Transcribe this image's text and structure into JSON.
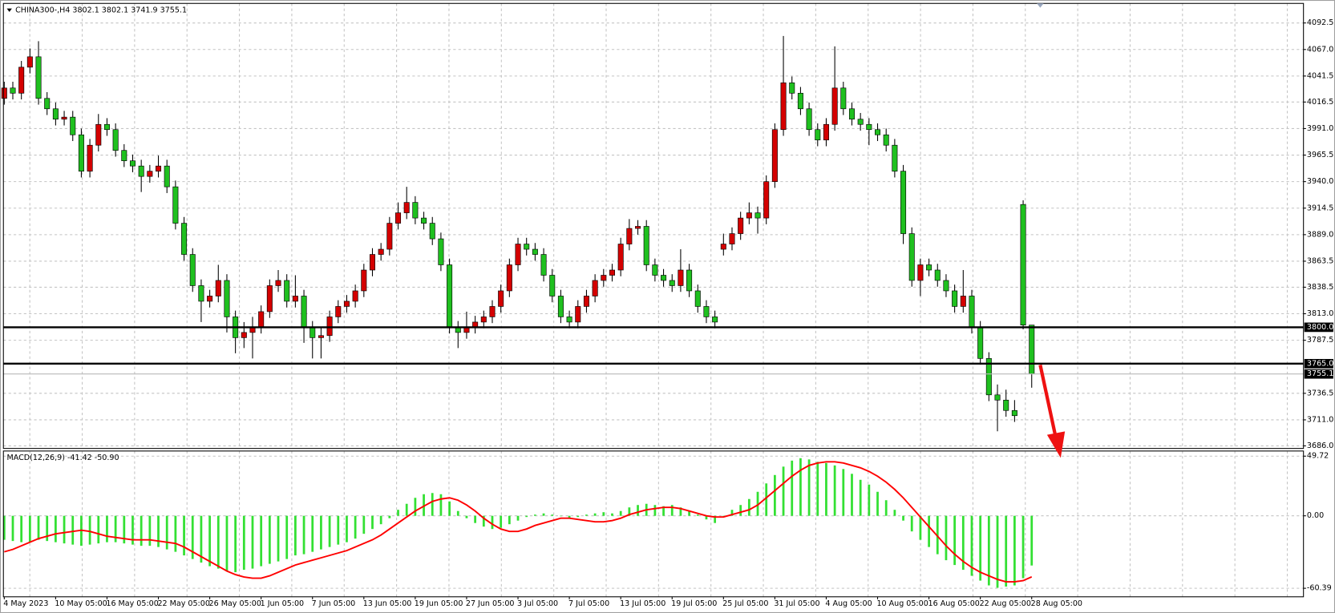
{
  "chart_data": [
    {
      "type": "candlestick",
      "title": "CHINA300-,H4  3802.1 3802.1 3741.9 3755.1",
      "up_color": "#d40000",
      "down_color": "#1fc01f",
      "wick_color": "#000000",
      "ylim": [
        3683.5,
        4111.3
      ],
      "yticks": [
        {
          "value": 4092.5,
          "label": "4092.5"
        },
        {
          "value": 4067,
          "label": "4067.0"
        },
        {
          "value": 4041.5,
          "label": "4041.5"
        },
        {
          "value": 4016.5,
          "label": "4016.5"
        },
        {
          "value": 3991,
          "label": "3991.0"
        },
        {
          "value": 3965.5,
          "label": "3965.5"
        },
        {
          "value": 3940,
          "label": "3940.0"
        },
        {
          "value": 3914.5,
          "label": "3914.5"
        },
        {
          "value": 3889,
          "label": "3889.0"
        },
        {
          "value": 3863.5,
          "label": "3863.5"
        },
        {
          "value": 3838.5,
          "label": "3838.5"
        },
        {
          "value": 3813,
          "label": "3813.0"
        },
        {
          "value": 3787.5,
          "label": "3787.5"
        },
        {
          "value": 3736.5,
          "label": "3736.5"
        },
        {
          "value": 3711,
          "label": "3711.0"
        },
        {
          "value": 3686,
          "label": "3686.0"
        }
      ],
      "grid": true,
      "levels": [
        {
          "value": 3800,
          "label": "3800.0"
        },
        {
          "value": 3765,
          "label": "3765.0"
        }
      ],
      "last_price": 3755.1,
      "categories": [
        "4 May 2023",
        null,
        null,
        null,
        null,
        null,
        "10 May 05:00",
        null,
        null,
        null,
        null,
        null,
        "16 May 05:00",
        null,
        null,
        null,
        null,
        null,
        "22 May 05:00",
        null,
        null,
        null,
        null,
        null,
        "26 May 05:00",
        null,
        null,
        null,
        null,
        null,
        "1 Jun 05:00",
        null,
        null,
        null,
        null,
        null,
        "7 Jun 05:00",
        null,
        null,
        null,
        null,
        null,
        "13 Jun 05:00",
        null,
        null,
        null,
        null,
        null,
        "19 Jun 05:00",
        null,
        null,
        null,
        null,
        null,
        "27 Jun 05:00",
        null,
        null,
        null,
        null,
        null,
        "3 Jul 05:00",
        null,
        null,
        null,
        null,
        null,
        "7 Jul 05:00",
        null,
        null,
        null,
        null,
        null,
        "13 Jul 05:00",
        null,
        null,
        null,
        null,
        null,
        "19 Jul 05:00",
        null,
        null,
        null,
        null,
        null,
        "25 Jul 05:00",
        null,
        null,
        null,
        null,
        null,
        "31 Jul 05:00",
        null,
        null,
        null,
        null,
        null,
        "4 Aug 05:00",
        null,
        null,
        null,
        null,
        null,
        "10 Aug 05:00",
        null,
        null,
        null,
        null,
        null,
        "16 Aug 05:00",
        null,
        null,
        null,
        null,
        null,
        "22 Aug 05:00",
        null,
        null,
        null,
        null,
        null,
        "28 Aug 05:00"
      ],
      "open": [
        4020,
        4030,
        4025,
        4050,
        4060,
        4020,
        4010,
        4000,
        4002,
        3985,
        3950,
        3975,
        3995,
        3990,
        3970,
        3960,
        3955,
        3945,
        3950,
        3955,
        3935,
        3900,
        3870,
        3840,
        3825,
        3830,
        3845,
        3810,
        3790,
        3795,
        3800,
        3815,
        3840,
        3845,
        3825,
        3830,
        3800,
        3790,
        3792,
        3810,
        3820,
        3825,
        3835,
        3855,
        3870,
        3875,
        3900,
        3910,
        3920,
        3905,
        3900,
        3885,
        3860,
        3800,
        3795,
        3800,
        3805,
        3810,
        3820,
        3835,
        3860,
        3880,
        3875,
        3870,
        3850,
        3830,
        3810,
        3805,
        3820,
        3830,
        3845,
        3850,
        3855,
        3880,
        3895,
        3897,
        3860,
        3850,
        3845,
        3840,
        3855,
        3835,
        3820,
        3810,
        3875,
        3880,
        3890,
        3905,
        3910,
        3905,
        3940,
        3990,
        4035,
        4025,
        4010,
        3990,
        3980,
        3995,
        4030,
        4010,
        4000,
        3995,
        3990,
        3985,
        3975,
        3950,
        3890,
        3845,
        3860,
        3855,
        3845,
        3835,
        3820,
        3830,
        3800,
        3770,
        3735,
        3730,
        3720,
        3918,
        3802.1
      ],
      "high": [
        4036,
        4036,
        4056,
        4068,
        4075,
        4026,
        4016,
        4008,
        4008,
        3991,
        3981,
        4005,
        4001,
        3996,
        3976,
        3966,
        3961,
        3956,
        3965,
        3961,
        3941,
        3906,
        3876,
        3846,
        3836,
        3860,
        3851,
        3816,
        3805,
        3810,
        3821,
        3846,
        3855,
        3851,
        3850,
        3836,
        3806,
        3800,
        3816,
        3826,
        3831,
        3841,
        3861,
        3876,
        3881,
        3906,
        3920,
        3935,
        3926,
        3911,
        3906,
        3891,
        3866,
        3806,
        3815,
        3811,
        3816,
        3826,
        3841,
        3866,
        3886,
        3886,
        3881,
        3876,
        3856,
        3836,
        3816,
        3826,
        3836,
        3851,
        3856,
        3861,
        3886,
        3904,
        3903,
        3903,
        3866,
        3856,
        3851,
        3875,
        3861,
        3841,
        3826,
        3816,
        3890,
        3896,
        3911,
        3920,
        3916,
        3946,
        3996,
        4080,
        4041,
        4031,
        4016,
        3996,
        4001,
        4070,
        4036,
        4016,
        4006,
        4001,
        3996,
        3991,
        3981,
        3956,
        3896,
        3866,
        3866,
        3861,
        3851,
        3841,
        3855,
        3836,
        3806,
        3776,
        3745,
        3740,
        3730,
        3922,
        3802.1
      ],
      "low": [
        4014,
        4019,
        4019,
        4044,
        4014,
        4004,
        3994,
        3994,
        3979,
        3944,
        3944,
        3969,
        3984,
        3964,
        3954,
        3949,
        3930,
        3939,
        3944,
        3929,
        3894,
        3864,
        3834,
        3805,
        3819,
        3824,
        3795,
        3775,
        3780,
        3770,
        3794,
        3809,
        3834,
        3819,
        3819,
        3785,
        3770,
        3770,
        3786,
        3804,
        3814,
        3819,
        3829,
        3849,
        3864,
        3869,
        3894,
        3904,
        3899,
        3894,
        3879,
        3854,
        3794,
        3780,
        3789,
        3794,
        3799,
        3804,
        3814,
        3829,
        3854,
        3869,
        3864,
        3844,
        3824,
        3804,
        3799,
        3799,
        3814,
        3824,
        3839,
        3844,
        3849,
        3874,
        3889,
        3854,
        3844,
        3839,
        3834,
        3834,
        3829,
        3814,
        3804,
        3799,
        3869,
        3874,
        3884,
        3899,
        3890,
        3899,
        3934,
        3984,
        4019,
        4004,
        3984,
        3974,
        3974,
        3989,
        4004,
        3994,
        3989,
        3975,
        3979,
        3969,
        3944,
        3880,
        3839,
        3830,
        3849,
        3839,
        3829,
        3814,
        3814,
        3794,
        3764,
        3729,
        3700,
        3714,
        3709,
        3798,
        3741.9
      ],
      "close": [
        4030,
        4025,
        4050,
        4060,
        4020,
        4010,
        4000,
        4002,
        3985,
        3950,
        3975,
        3995,
        3990,
        3970,
        3960,
        3955,
        3945,
        3950,
        3955,
        3935,
        3900,
        3870,
        3840,
        3825,
        3830,
        3845,
        3810,
        3790,
        3795,
        3800,
        3815,
        3840,
        3845,
        3825,
        3830,
        3800,
        3790,
        3792,
        3810,
        3820,
        3825,
        3835,
        3855,
        3870,
        3875,
        3900,
        3910,
        3920,
        3905,
        3900,
        3885,
        3860,
        3800,
        3795,
        3800,
        3805,
        3810,
        3820,
        3835,
        3860,
        3880,
        3875,
        3870,
        3850,
        3830,
        3810,
        3805,
        3820,
        3830,
        3845,
        3850,
        3855,
        3880,
        3895,
        3897,
        3860,
        3850,
        3845,
        3840,
        3855,
        3835,
        3820,
        3810,
        3805,
        3880,
        3890,
        3905,
        3910,
        3905,
        3940,
        3990,
        4035,
        4025,
        4010,
        3990,
        3980,
        3995,
        4030,
        4010,
        4000,
        3995,
        3990,
        3985,
        3975,
        3950,
        3890,
        3845,
        3860,
        3855,
        3845,
        3835,
        3820,
        3830,
        3800,
        3770,
        3735,
        3730,
        3720,
        3715,
        3802.1,
        3755.1
      ]
    },
    {
      "type": "macd",
      "title": "MACD(12,26,9) -41.42 -50.90",
      "color": "#33e033",
      "signal_color": "#ff0000",
      "ylim": [
        -67.5,
        54
      ],
      "yticks": [
        {
          "value": 49.72,
          "label": "49.72"
        },
        {
          "value": 0,
          "label": "0.00"
        },
        {
          "value": -60.39,
          "label": "-60.39"
        }
      ],
      "values": [
        -20,
        -21,
        -22,
        -22,
        -20,
        -21,
        -22,
        -23,
        -24,
        -25,
        -24,
        -23,
        -22,
        -22,
        -23,
        -24,
        -25,
        -25,
        -26,
        -28,
        -30,
        -33,
        -36,
        -39,
        -42,
        -44,
        -46,
        -47,
        -45,
        -44,
        -42,
        -40,
        -38,
        -36,
        -33,
        -32,
        -30,
        -28,
        -26,
        -24,
        -22,
        -19,
        -15,
        -11,
        -7,
        -2,
        5,
        10,
        15,
        18,
        19,
        18,
        12,
        4,
        -2,
        -6,
        -9,
        -11,
        -10,
        -7,
        -4,
        -1,
        1,
        2,
        1,
        0,
        -2,
        -1,
        1,
        2,
        3,
        2,
        4,
        7,
        9,
        10,
        9,
        8,
        9,
        7,
        4,
        1,
        -3,
        -6,
        0,
        5,
        9,
        14,
        20,
        27,
        34,
        41,
        46,
        48,
        47,
        45,
        44,
        42,
        39,
        35,
        30,
        26,
        20,
        13,
        5,
        -4,
        -13,
        -20,
        -26,
        -32,
        -37,
        -41,
        -45,
        -50,
        -54,
        -58,
        -60,
        -59,
        -58,
        -52,
        -41.42
      ],
      "signal": [
        -30,
        -28,
        -25,
        -22,
        -19,
        -17,
        -15,
        -14,
        -13,
        -12,
        -13,
        -15,
        -17,
        -18,
        -19,
        -20,
        -20,
        -20,
        -21,
        -22,
        -23,
        -26,
        -30,
        -34,
        -38,
        -42,
        -46,
        -49,
        -51,
        -52,
        -52,
        -50,
        -47,
        -44,
        -41,
        -39,
        -37,
        -35,
        -33,
        -31,
        -29,
        -26,
        -23,
        -20,
        -16,
        -11,
        -6,
        -1,
        4,
        8,
        12,
        14,
        15,
        13,
        9,
        4,
        -2,
        -7,
        -11,
        -13,
        -13,
        -11,
        -8,
        -6,
        -4,
        -2,
        -2,
        -3,
        -4,
        -5,
        -5,
        -4,
        -2,
        1,
        3,
        5,
        6,
        7,
        7,
        6,
        4,
        2,
        0,
        -1,
        -1,
        1,
        3,
        5,
        9,
        15,
        21,
        27,
        33,
        38,
        42,
        44,
        45,
        45,
        44,
        42,
        40,
        37,
        33,
        28,
        22,
        15,
        7,
        -1,
        -9,
        -17,
        -25,
        -32,
        -38,
        -43,
        -47,
        -50,
        -53,
        -55,
        -55,
        -54,
        -50.9
      ]
    }
  ]
}
